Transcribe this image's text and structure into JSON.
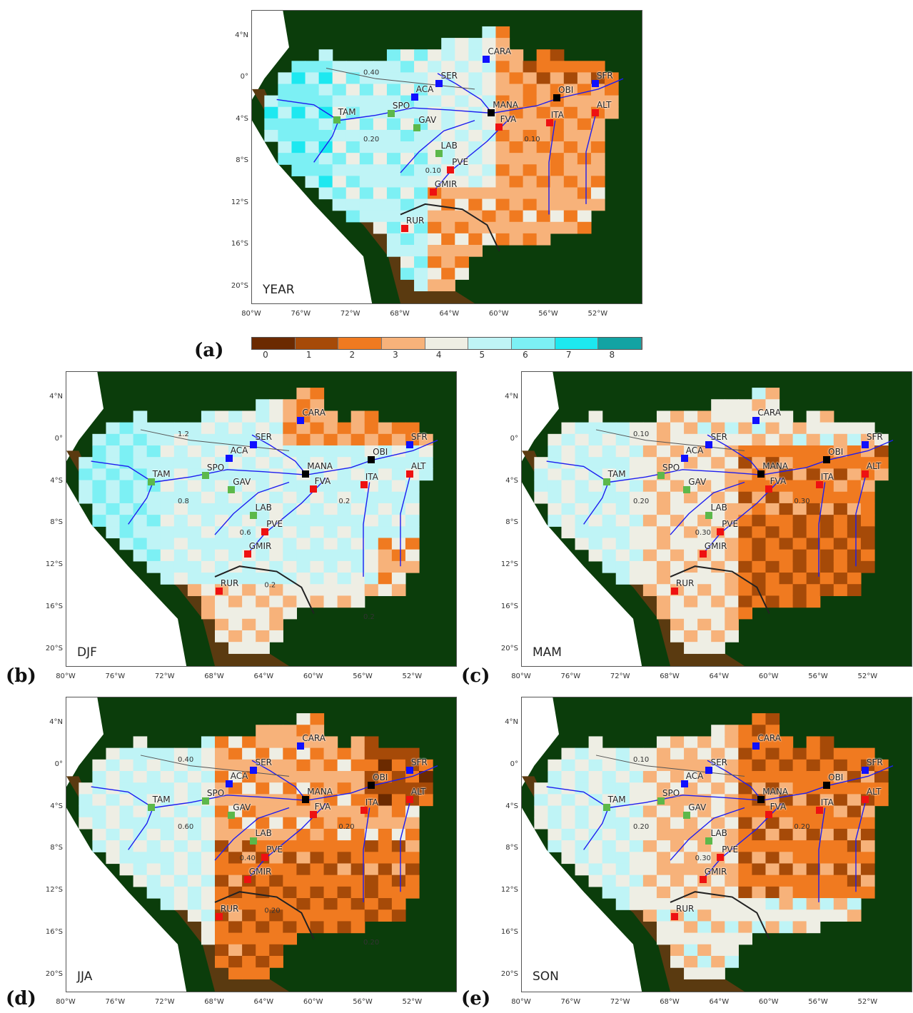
{
  "panels": [
    {
      "id": "a",
      "season": "YEAR",
      "label": "(a)"
    },
    {
      "id": "b",
      "season": "DJF",
      "label": "(b)"
    },
    {
      "id": "c",
      "season": "MAM",
      "label": "(c)"
    },
    {
      "id": "d",
      "season": "JJA",
      "label": "(d)"
    },
    {
      "id": "e",
      "season": "SON",
      "label": "(e)"
    }
  ],
  "lat_ticks": [
    "4°N",
    "0°",
    "4°S",
    "8°S",
    "12°S",
    "16°S",
    "20°S"
  ],
  "lon_ticks": [
    "80°W",
    "76°W",
    "72°W",
    "68°W",
    "64°W",
    "60°W",
    "56°W",
    "52°W"
  ],
  "colorbar": {
    "labels": [
      "0",
      "1",
      "2",
      "3",
      "4",
      "5",
      "6",
      "7",
      "8"
    ],
    "colors": [
      "#6b2a00",
      "#a64a08",
      "#f07a20",
      "#f7b27a",
      "#eeeee4",
      "#bff4f6",
      "#7cf0f4",
      "#1de8f0",
      "#12a3a3"
    ]
  },
  "stations": [
    {
      "name": "CARA",
      "lon": -61.0,
      "lat": 1.8,
      "color": "#1010ff"
    },
    {
      "name": "SER",
      "lon": -64.8,
      "lat": -0.5,
      "color": "#1010ff"
    },
    {
      "name": "ACA",
      "lon": -66.8,
      "lat": -1.8,
      "color": "#1010ff"
    },
    {
      "name": "SFR",
      "lon": -52.2,
      "lat": -0.5,
      "color": "#1010ff"
    },
    {
      "name": "MANA",
      "lon": -60.6,
      "lat": -3.3,
      "color": "#000000"
    },
    {
      "name": "OBI",
      "lon": -55.3,
      "lat": -1.9,
      "color": "#000000"
    },
    {
      "name": "TAM",
      "lon": -73.1,
      "lat": -4.0,
      "color": "#5cb84a"
    },
    {
      "name": "SPO",
      "lon": -68.7,
      "lat": -3.4,
      "color": "#5cb84a"
    },
    {
      "name": "GAV",
      "lon": -66.6,
      "lat": -4.8,
      "color": "#5cb84a"
    },
    {
      "name": "LAB",
      "lon": -64.8,
      "lat": -7.2,
      "color": "#5cb84a"
    },
    {
      "name": "FVA",
      "lon": -60.0,
      "lat": -4.7,
      "color": "#ee1111"
    },
    {
      "name": "ITA",
      "lon": -55.9,
      "lat": -4.3,
      "color": "#ee1111"
    },
    {
      "name": "ALT",
      "lon": -52.2,
      "lat": -3.3,
      "color": "#ee1111"
    },
    {
      "name": "PVE",
      "lon": -63.9,
      "lat": -8.8,
      "color": "#ee1111"
    },
    {
      "name": "GMIR",
      "lon": -65.3,
      "lat": -10.9,
      "color": "#ee1111"
    },
    {
      "name": "RUR",
      "lon": -67.6,
      "lat": -14.4,
      "color": "#ee1111"
    }
  ],
  "contour_labels": {
    "a": [
      "0.40",
      "0.20",
      "0.10",
      "0.10"
    ],
    "b": [
      "1.2",
      "0.8",
      "0.6",
      "0.2",
      "0.2",
      "0.2"
    ],
    "c": [
      "0.10",
      "0.20",
      "0.30",
      "0.30"
    ],
    "d": [
      "0.40",
      "0.60",
      "0.40",
      "0.20",
      "0.20",
      "0.20"
    ],
    "e": [
      "0.10",
      "0.20",
      "0.30",
      "0.20"
    ]
  }
}
